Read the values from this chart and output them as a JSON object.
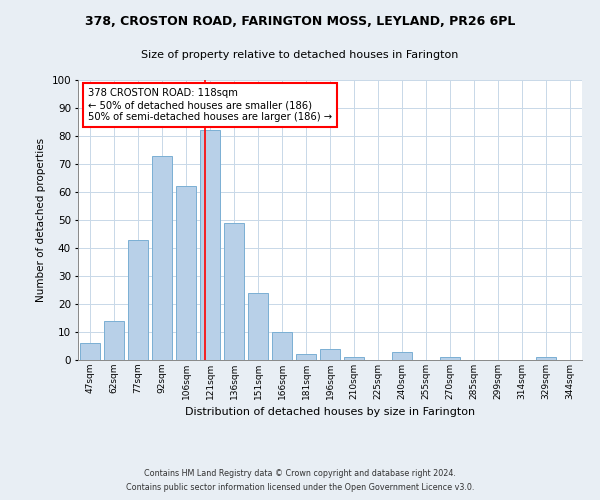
{
  "title": "378, CROSTON ROAD, FARINGTON MOSS, LEYLAND, PR26 6PL",
  "subtitle": "Size of property relative to detached houses in Farington",
  "xlabel": "Distribution of detached houses by size in Farington",
  "ylabel": "Number of detached properties",
  "bar_labels": [
    "47sqm",
    "62sqm",
    "77sqm",
    "92sqm",
    "106sqm",
    "121sqm",
    "136sqm",
    "151sqm",
    "166sqm",
    "181sqm",
    "196sqm",
    "210sqm",
    "225sqm",
    "240sqm",
    "255sqm",
    "270sqm",
    "285sqm",
    "299sqm",
    "314sqm",
    "329sqm",
    "344sqm"
  ],
  "bar_values": [
    6,
    14,
    43,
    73,
    62,
    82,
    49,
    24,
    10,
    2,
    4,
    1,
    0,
    3,
    0,
    1,
    0,
    0,
    0,
    1,
    0
  ],
  "bar_color": "#b8d0e8",
  "bar_edge_color": "#7aafd4",
  "marker_label": "378 CROSTON ROAD: 118sqm",
  "annotation_line1": "← 50% of detached houses are smaller (186)",
  "annotation_line2": "50% of semi-detached houses are larger (186) →",
  "ylim": [
    0,
    100
  ],
  "yticks": [
    0,
    10,
    20,
    30,
    40,
    50,
    60,
    70,
    80,
    90,
    100
  ],
  "footer1": "Contains HM Land Registry data © Crown copyright and database right 2024.",
  "footer2": "Contains public sector information licensed under the Open Government Licence v3.0.",
  "bg_color": "#e8eef4",
  "plot_bg_color": "#ffffff",
  "grid_color": "#c8d8e8"
}
